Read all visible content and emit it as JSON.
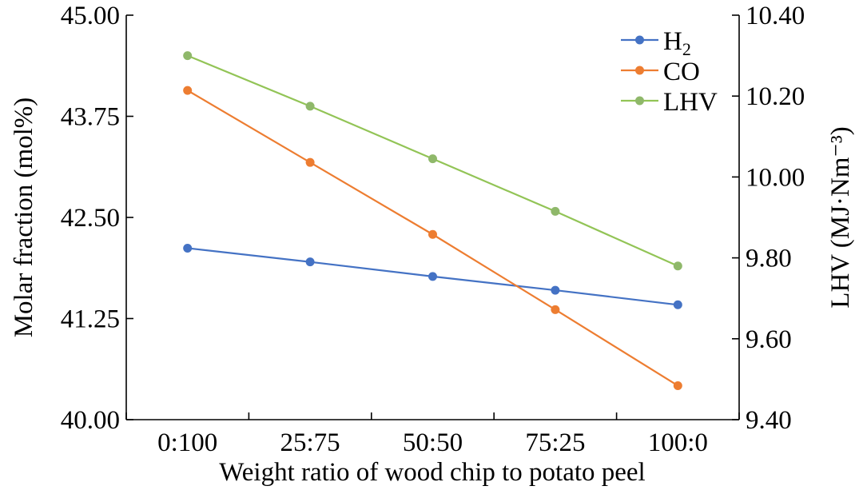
{
  "chart_data": {
    "type": "line",
    "categories": [
      "0:100",
      "25:75",
      "50:50",
      "75:25",
      "100:0"
    ],
    "xlabel": "Weight ratio of wood chip to potato peel",
    "ylabel": "Molar fraction (mol%)",
    "y2label": "LHV (MJ·Nm⁻³)",
    "ylim": [
      40.0,
      45.0
    ],
    "y2lim": [
      9.4,
      10.4
    ],
    "yticks": [
      "40.00",
      "41.25",
      "42.50",
      "43.75",
      "45.00"
    ],
    "y2ticks": [
      "9.40",
      "9.60",
      "9.80",
      "10.00",
      "10.20",
      "10.40"
    ],
    "grid": false,
    "legend_position": "top-right",
    "series": [
      {
        "name": "H₂",
        "legend_main": "H",
        "legend_sub": "2",
        "axis": "left",
        "color": "#4472C4",
        "values": [
          42.12,
          41.95,
          41.77,
          41.6,
          41.42
        ]
      },
      {
        "name": "CO",
        "legend_main": "CO",
        "legend_sub": "",
        "axis": "left",
        "color": "#ED7D31",
        "values": [
          44.07,
          43.18,
          42.29,
          41.36,
          40.42
        ]
      },
      {
        "name": "LHV",
        "legend_main": "LHV",
        "legend_sub": "",
        "axis": "right",
        "color": "#92C456",
        "marker_color": "#8FB86A",
        "values": [
          10.3,
          10.175,
          10.045,
          9.915,
          9.78
        ]
      }
    ]
  }
}
